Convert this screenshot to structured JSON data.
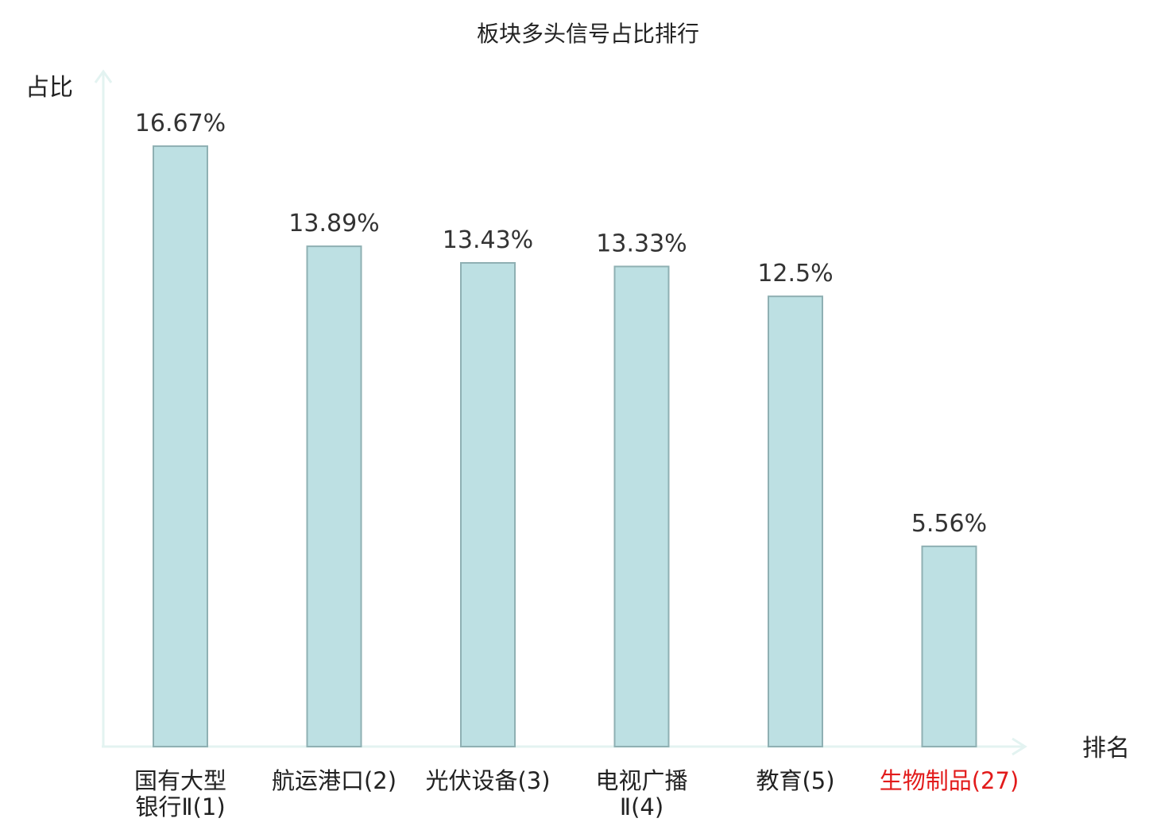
{
  "chart_data": {
    "type": "bar",
    "title": "板块多头信号占比排行",
    "ylabel": "占比",
    "xlabel": "排名",
    "ylim": [
      0,
      18.7
    ],
    "categories": [
      {
        "name_lines": [
          "国有大型",
          "银行Ⅱ(1)"
        ],
        "highlight": false
      },
      {
        "name_lines": [
          "航运港口(2)"
        ],
        "highlight": false
      },
      {
        "name_lines": [
          "光伏设备(3)"
        ],
        "highlight": false
      },
      {
        "name_lines": [
          "电视广播",
          "Ⅱ(4)"
        ],
        "highlight": false
      },
      {
        "name_lines": [
          "教育(5)"
        ],
        "highlight": false
      },
      {
        "name_lines": [
          "生物制品(27)"
        ],
        "highlight": true
      }
    ],
    "values": [
      16.67,
      13.89,
      13.43,
      13.33,
      12.5,
      5.56
    ],
    "value_labels": [
      "16.67%",
      "13.89%",
      "13.43%",
      "13.33%",
      "12.5%",
      "5.56%"
    ],
    "grid": false,
    "legend": "none",
    "colors": {
      "bar_fill": "#bde0e3",
      "bar_stroke": "#8fb0b3",
      "axis": "#e3f3f1",
      "highlight_text": "#e21b1b"
    }
  }
}
